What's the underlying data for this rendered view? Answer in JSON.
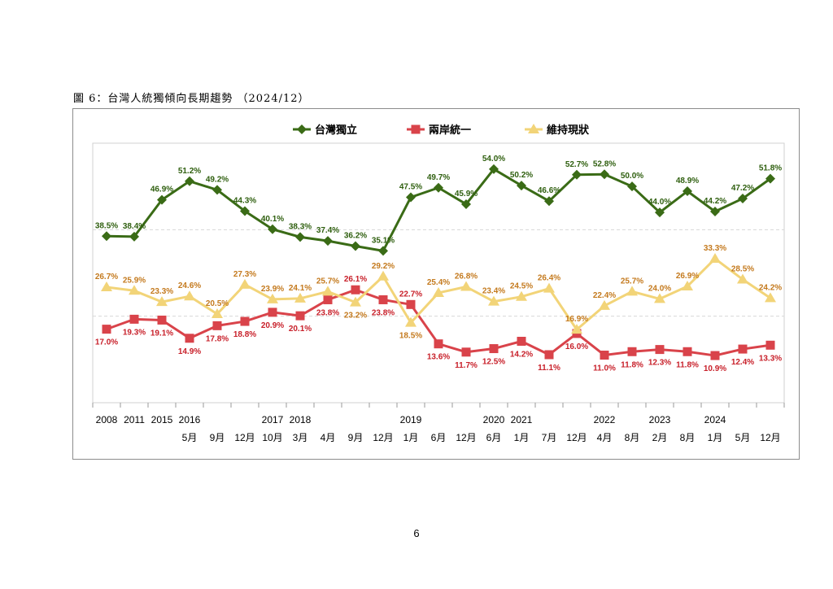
{
  "document": {
    "title": "圖 6：台灣人統獨傾向長期趨勢 （2024/12）",
    "page_number": "6"
  },
  "chart_data": {
    "type": "line",
    "title": "",
    "xlabel": "",
    "ylabel": "",
    "grid": "horizontal dashed",
    "legend_position": "top",
    "categories": [
      {
        "year": "2008",
        "month": ""
      },
      {
        "year": "2011",
        "month": ""
      },
      {
        "year": "2015",
        "month": ""
      },
      {
        "year": "2016",
        "month": "5月"
      },
      {
        "year": "",
        "month": "9月"
      },
      {
        "year": "",
        "month": "12月"
      },
      {
        "year": "2017",
        "month": "10月"
      },
      {
        "year": "2018",
        "month": "3月"
      },
      {
        "year": "",
        "month": "4月"
      },
      {
        "year": "",
        "month": "9月"
      },
      {
        "year": "",
        "month": "12月"
      },
      {
        "year": "2019",
        "month": "1月"
      },
      {
        "year": "",
        "month": "6月"
      },
      {
        "year": "",
        "month": "12月"
      },
      {
        "year": "2020",
        "month": "6月"
      },
      {
        "year": "2021",
        "month": "1月"
      },
      {
        "year": "",
        "month": "7月"
      },
      {
        "year": "",
        "month": "12月"
      },
      {
        "year": "2022",
        "month": "4月"
      },
      {
        "year": "",
        "month": "8月"
      },
      {
        "year": "2023",
        "month": "2月"
      },
      {
        "year": "",
        "month": "8月"
      },
      {
        "year": "2024",
        "month": "1月"
      },
      {
        "year": "",
        "month": "5月"
      },
      {
        "year": "",
        "month": "12月"
      }
    ],
    "ylim": [
      0,
      60
    ],
    "series": [
      {
        "name": "台灣獨立",
        "color": "#3a6b16",
        "label_color": "#2f5f0f",
        "marker": "diamond",
        "values": [
          38.5,
          38.4,
          46.9,
          51.2,
          49.2,
          44.3,
          40.1,
          38.3,
          37.4,
          36.2,
          35.1,
          47.5,
          49.7,
          45.9,
          54.0,
          50.2,
          46.6,
          52.7,
          52.8,
          50.0,
          44.0,
          48.9,
          44.2,
          47.2,
          51.8
        ]
      },
      {
        "name": "兩岸統一",
        "color": "#d9434a",
        "label_color": "#c8202a",
        "marker": "square",
        "values": [
          17.0,
          19.3,
          19.1,
          14.9,
          17.8,
          18.8,
          20.9,
          20.1,
          23.8,
          26.1,
          23.8,
          22.7,
          13.6,
          11.7,
          12.5,
          14.2,
          11.1,
          16.0,
          11.0,
          11.8,
          12.3,
          11.8,
          10.9,
          12.4,
          13.3
        ]
      },
      {
        "name": "維持現狀",
        "color": "#f2d478",
        "label_color": "#c47a1e",
        "marker": "triangle",
        "values": [
          26.7,
          25.9,
          23.3,
          24.6,
          20.5,
          27.3,
          23.9,
          24.1,
          25.7,
          23.2,
          29.2,
          18.5,
          25.4,
          26.8,
          23.4,
          24.5,
          26.4,
          16.9,
          22.4,
          25.7,
          24.0,
          26.9,
          33.3,
          28.5,
          24.2
        ]
      }
    ]
  }
}
